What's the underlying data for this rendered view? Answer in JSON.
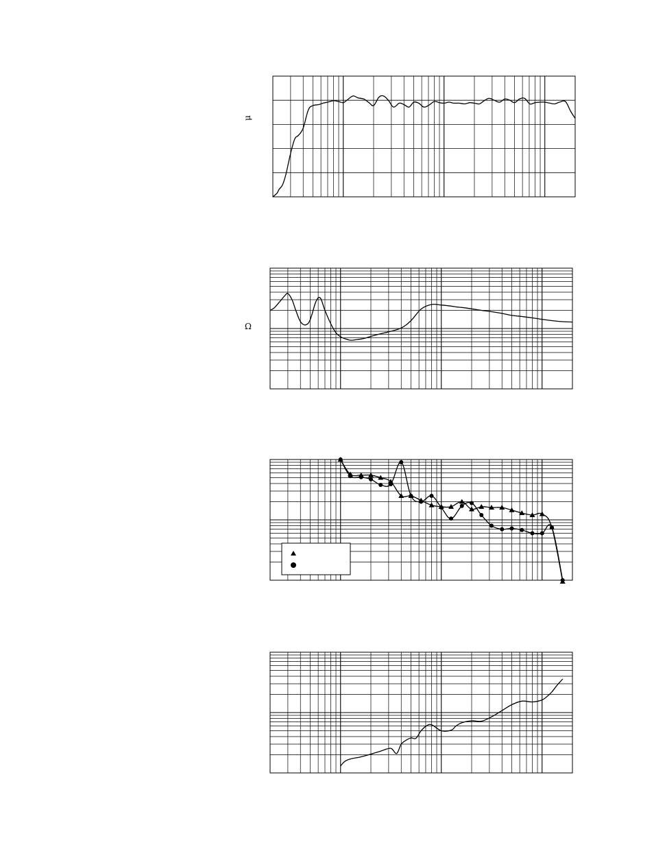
{
  "charts": {
    "frequency_response": {
      "unit_symbol": "μ",
      "chart_data": {
        "type": "line",
        "title": "",
        "xlabel": "",
        "ylabel": "",
        "xscale": "log",
        "xlim": [
          20,
          20000
        ],
        "ylim": [
          0,
          5
        ],
        "grid": true,
        "series": [
          {
            "name": "",
            "x": [
              20,
              22,
              23,
              25,
              27,
              30,
              33,
              36,
              40,
              45,
              50,
              57,
              63,
              70,
              80,
              90,
              100,
              110,
              125,
              140,
              160,
              180,
              200,
              225,
              250,
              280,
              315,
              360,
              400,
              450,
              500,
              560,
              630,
              710,
              800,
              900,
              1000,
              1120,
              1250,
              1400,
              1600,
              1800,
              2000,
              2240,
              2500,
              2800,
              3150,
              3550,
              4000,
              4500,
              5000,
              5600,
              6300,
              7100,
              8000,
              9000,
              10000,
              11200,
              12500,
              14000,
              16000,
              18000,
              20000
            ],
            "y": [
              0.0,
              0.15,
              0.3,
              0.5,
              0.95,
              1.8,
              2.4,
              2.55,
              2.85,
              3.6,
              3.78,
              3.82,
              3.88,
              3.92,
              3.98,
              3.95,
              3.9,
              4.02,
              4.18,
              4.1,
              4.05,
              3.9,
              3.78,
              4.12,
              4.18,
              4.0,
              3.72,
              3.88,
              3.82,
              3.72,
              3.92,
              3.88,
              3.72,
              3.8,
              3.95,
              3.9,
              3.88,
              3.92,
              3.88,
              3.88,
              3.85,
              3.9,
              3.88,
              3.85,
              3.98,
              4.08,
              4.0,
              3.92,
              4.05,
              4.0,
              3.9,
              4.05,
              4.08,
              3.85,
              3.9,
              3.92,
              3.92,
              3.88,
              3.85,
              3.92,
              3.95,
              3.55,
              3.25
            ]
          }
        ]
      }
    },
    "impedance": {
      "unit_symbol": "Ω",
      "chart_data": {
        "type": "line",
        "title": "",
        "xlabel": "",
        "ylabel": "",
        "xscale": "log",
        "yscale": "log",
        "xlim": [
          20,
          20000
        ],
        "ylim": [
          1,
          100
        ],
        "grid": true,
        "series": [
          {
            "name": "",
            "x": [
              20,
              22,
              25,
              28,
              30,
              33,
              36,
              40,
              45,
              50,
              57,
              63,
              70,
              80,
              90,
              100,
              110,
              125,
              140,
              160,
              180,
              200,
              250,
              300,
              400,
              500,
              630,
              800,
              1000,
              1250,
              1400,
              1600,
              2000,
              2500,
              3150,
              4000,
              5000,
              6300,
              8000,
              10000,
              12500,
              16000,
              20000
            ],
            "y": [
              20,
              22,
              28,
              35,
              38,
              30,
              20,
              13,
              11.5,
              14,
              28,
              32,
              20,
              12,
              8.5,
              7.3,
              6.8,
              6.4,
              6.5,
              6.7,
              7,
              7.4,
              8.2,
              8.8,
              10.2,
              13.5,
              21,
              25,
              24.5,
              23.5,
              22.8,
              22.3,
              21.2,
              20,
              19,
              17.8,
              16.5,
              15.8,
              15,
              14.2,
              13.5,
              13,
              12.8
            ]
          }
        ]
      }
    },
    "distortion": {
      "legend_symbols": [
        "▲",
        "●"
      ],
      "legend_labels": [
        "",
        ""
      ],
      "chart_data": {
        "type": "line",
        "title": "",
        "xlabel": "",
        "ylabel": "",
        "xscale": "log",
        "yscale": "log",
        "xlim": [
          20,
          20000
        ],
        "ylim": [
          0.1,
          10
        ],
        "grid": true,
        "legend": "bottom-left",
        "series": [
          {
            "name": "",
            "marker": "triangle",
            "x": [
              100,
              125,
              160,
              200,
              250,
              315,
              400,
              500,
              630,
              800,
              1000,
              1250,
              1600,
              2000,
              2500,
              3150,
              4000,
              5000,
              6300,
              8000,
              10000,
              12500,
              16000
            ],
            "y": [
              10,
              5.7,
              5.5,
              5.5,
              5.0,
              4.3,
              2.5,
              2.5,
              2.1,
              1.75,
              1.65,
              1.65,
              2.0,
              1.5,
              1.65,
              1.6,
              1.6,
              1.45,
              1.3,
              1.2,
              1.25,
              0.75,
              0.08
            ]
          },
          {
            "name": "",
            "marker": "circle",
            "x": [
              100,
              125,
              160,
              200,
              250,
              315,
              400,
              500,
              630,
              800,
              1000,
              1250,
              1600,
              2000,
              2500,
              3150,
              4000,
              5000,
              6300,
              8000,
              10000,
              12500,
              16000
            ],
            "y": [
              10,
              5.3,
              5.1,
              4.7,
              3.8,
              3.9,
              9.0,
              2.5,
              2.0,
              2.5,
              1.6,
              1.05,
              1.7,
              1.9,
              1.2,
              0.8,
              0.7,
              0.72,
              0.68,
              0.6,
              0.6,
              0.75,
              0.1
            ]
          }
        ]
      }
    },
    "phase": {
      "chart_data": {
        "type": "line",
        "title": "",
        "xlabel": "",
        "ylabel": "",
        "xscale": "log",
        "yscale": "log",
        "xlim": [
          20,
          20000
        ],
        "ylim": [
          1,
          100
        ],
        "grid": true,
        "series": [
          {
            "name": "",
            "x": [
              100,
              110,
              125,
              160,
              200,
              250,
              315,
              360,
              400,
              450,
              500,
              560,
              630,
              710,
              800,
              1000,
              1250,
              1400,
              1600,
              2000,
              2500,
              3150,
              4000,
              5000,
              6300,
              8000,
              10000,
              11200,
              12500,
              14000,
              16000
            ],
            "y": [
              1.3,
              1.55,
              1.7,
              1.85,
              2.05,
              2.3,
              2.55,
              2.1,
              3.0,
              3.5,
              3.8,
              3.75,
              5.0,
              6.0,
              6.3,
              5.0,
              5.1,
              6.0,
              6.8,
              7.3,
              7.2,
              8.5,
              10.8,
              13.5,
              15.5,
              15.0,
              16.2,
              18.5,
              22,
              28,
              36
            ]
          }
        ]
      }
    }
  }
}
